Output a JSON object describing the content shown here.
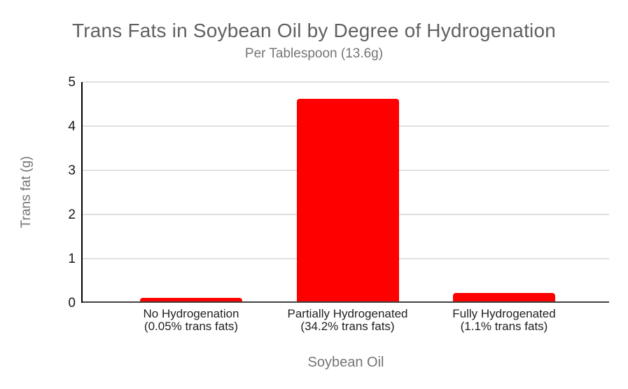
{
  "chart_data": {
    "type": "bar",
    "title": "Trans Fats in Soybean Oil by Degree of Hydrogenation",
    "subtitle": "Per Tablespoon (13.6g)",
    "xlabel": "Soybean Oil",
    "ylabel": "Trans fat (g)",
    "ylim": [
      0,
      5
    ],
    "yticks": [
      0,
      1,
      2,
      3,
      4,
      5
    ],
    "grid": true,
    "legend_position": "none",
    "categories": [
      "No Hydrogenation\n(0.05% trans fats)",
      "Partially Hydrogenated\n(34.2% trans fats)",
      "Fully Hydrogenated\n(1.1% trans fats)"
    ],
    "values": [
      0.1,
      4.6,
      0.2
    ],
    "bar_color": "#FF0000"
  },
  "colors": {
    "background": "#FFFFFF",
    "title_text": "#616161",
    "subtitle_text": "#757575",
    "axis_title_text": "#757575",
    "tick_text": "#1A1A1A",
    "category_text": "#212121",
    "gridline": "#E0E0E0",
    "baseline": "#424242",
    "axis_line": "#000000",
    "bar": "#FF0000"
  }
}
